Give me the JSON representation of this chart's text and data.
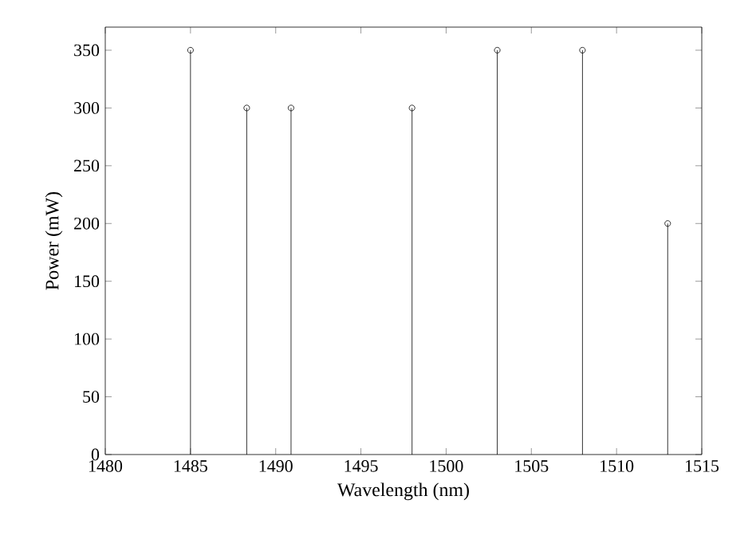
{
  "chart_data": {
    "type": "lollipop",
    "xlabel": "Wavelength (nm)",
    "ylabel": "Power (mW)",
    "x": [
      1485,
      1488.3,
      1490.9,
      1498,
      1503,
      1508,
      1513
    ],
    "values": [
      350,
      300,
      300,
      300,
      350,
      350,
      200
    ],
    "color": "#000000",
    "marker": "circle",
    "xlim": [
      1480,
      1515
    ],
    "xticks": [
      1480,
      1485,
      1490,
      1495,
      1500,
      1505,
      1510,
      1515
    ],
    "ylim": [
      0,
      370
    ],
    "yticks": [
      0,
      50,
      100,
      150,
      200,
      250,
      300,
      350
    ]
  }
}
